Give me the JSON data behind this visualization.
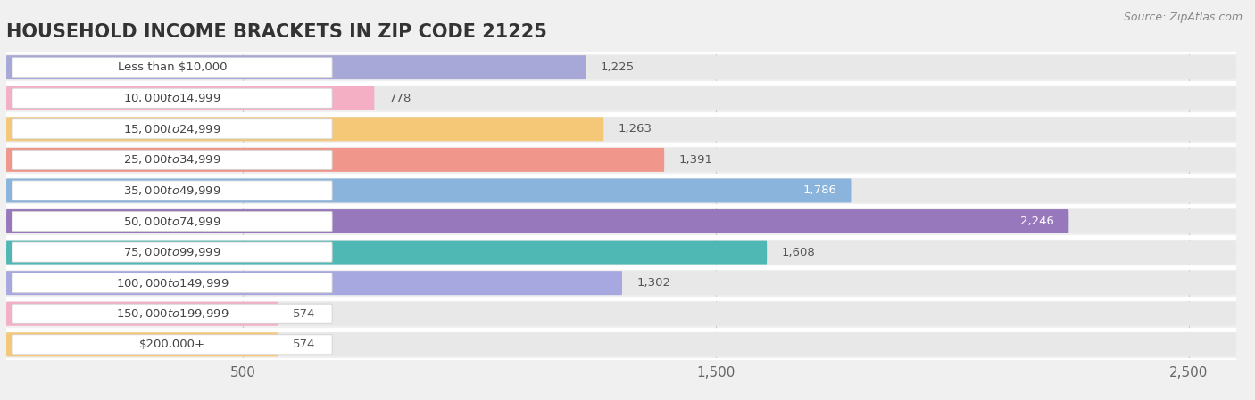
{
  "title": "HOUSEHOLD INCOME BRACKETS IN ZIP CODE 21225",
  "source": "Source: ZipAtlas.com",
  "categories": [
    "Less than $10,000",
    "$10,000 to $14,999",
    "$15,000 to $24,999",
    "$25,000 to $34,999",
    "$35,000 to $49,999",
    "$50,000 to $74,999",
    "$75,000 to $99,999",
    "$100,000 to $149,999",
    "$150,000 to $199,999",
    "$200,000+"
  ],
  "values": [
    1225,
    778,
    1263,
    1391,
    1786,
    2246,
    1608,
    1302,
    574,
    574
  ],
  "bar_colors": [
    "#a8a8d8",
    "#f5afc5",
    "#f5c878",
    "#f0968a",
    "#8ab4dc",
    "#9878bc",
    "#50b8b4",
    "#a8a8e0",
    "#f5afc5",
    "#f5c878"
  ],
  "value_inside": [
    false,
    false,
    false,
    false,
    true,
    true,
    false,
    false,
    false,
    false
  ],
  "xlim_max": 2600,
  "xtick_values": [
    500,
    1500,
    2500
  ],
  "xtick_labels": [
    "500",
    "1,500",
    "2,500"
  ],
  "bg_color": "#f0f0f0",
  "row_bg_color": "#e8e8e8",
  "separator_color": "#ffffff",
  "title_fontsize": 15,
  "source_fontsize": 9,
  "category_fontsize": 9.5,
  "value_fontsize": 9.5
}
